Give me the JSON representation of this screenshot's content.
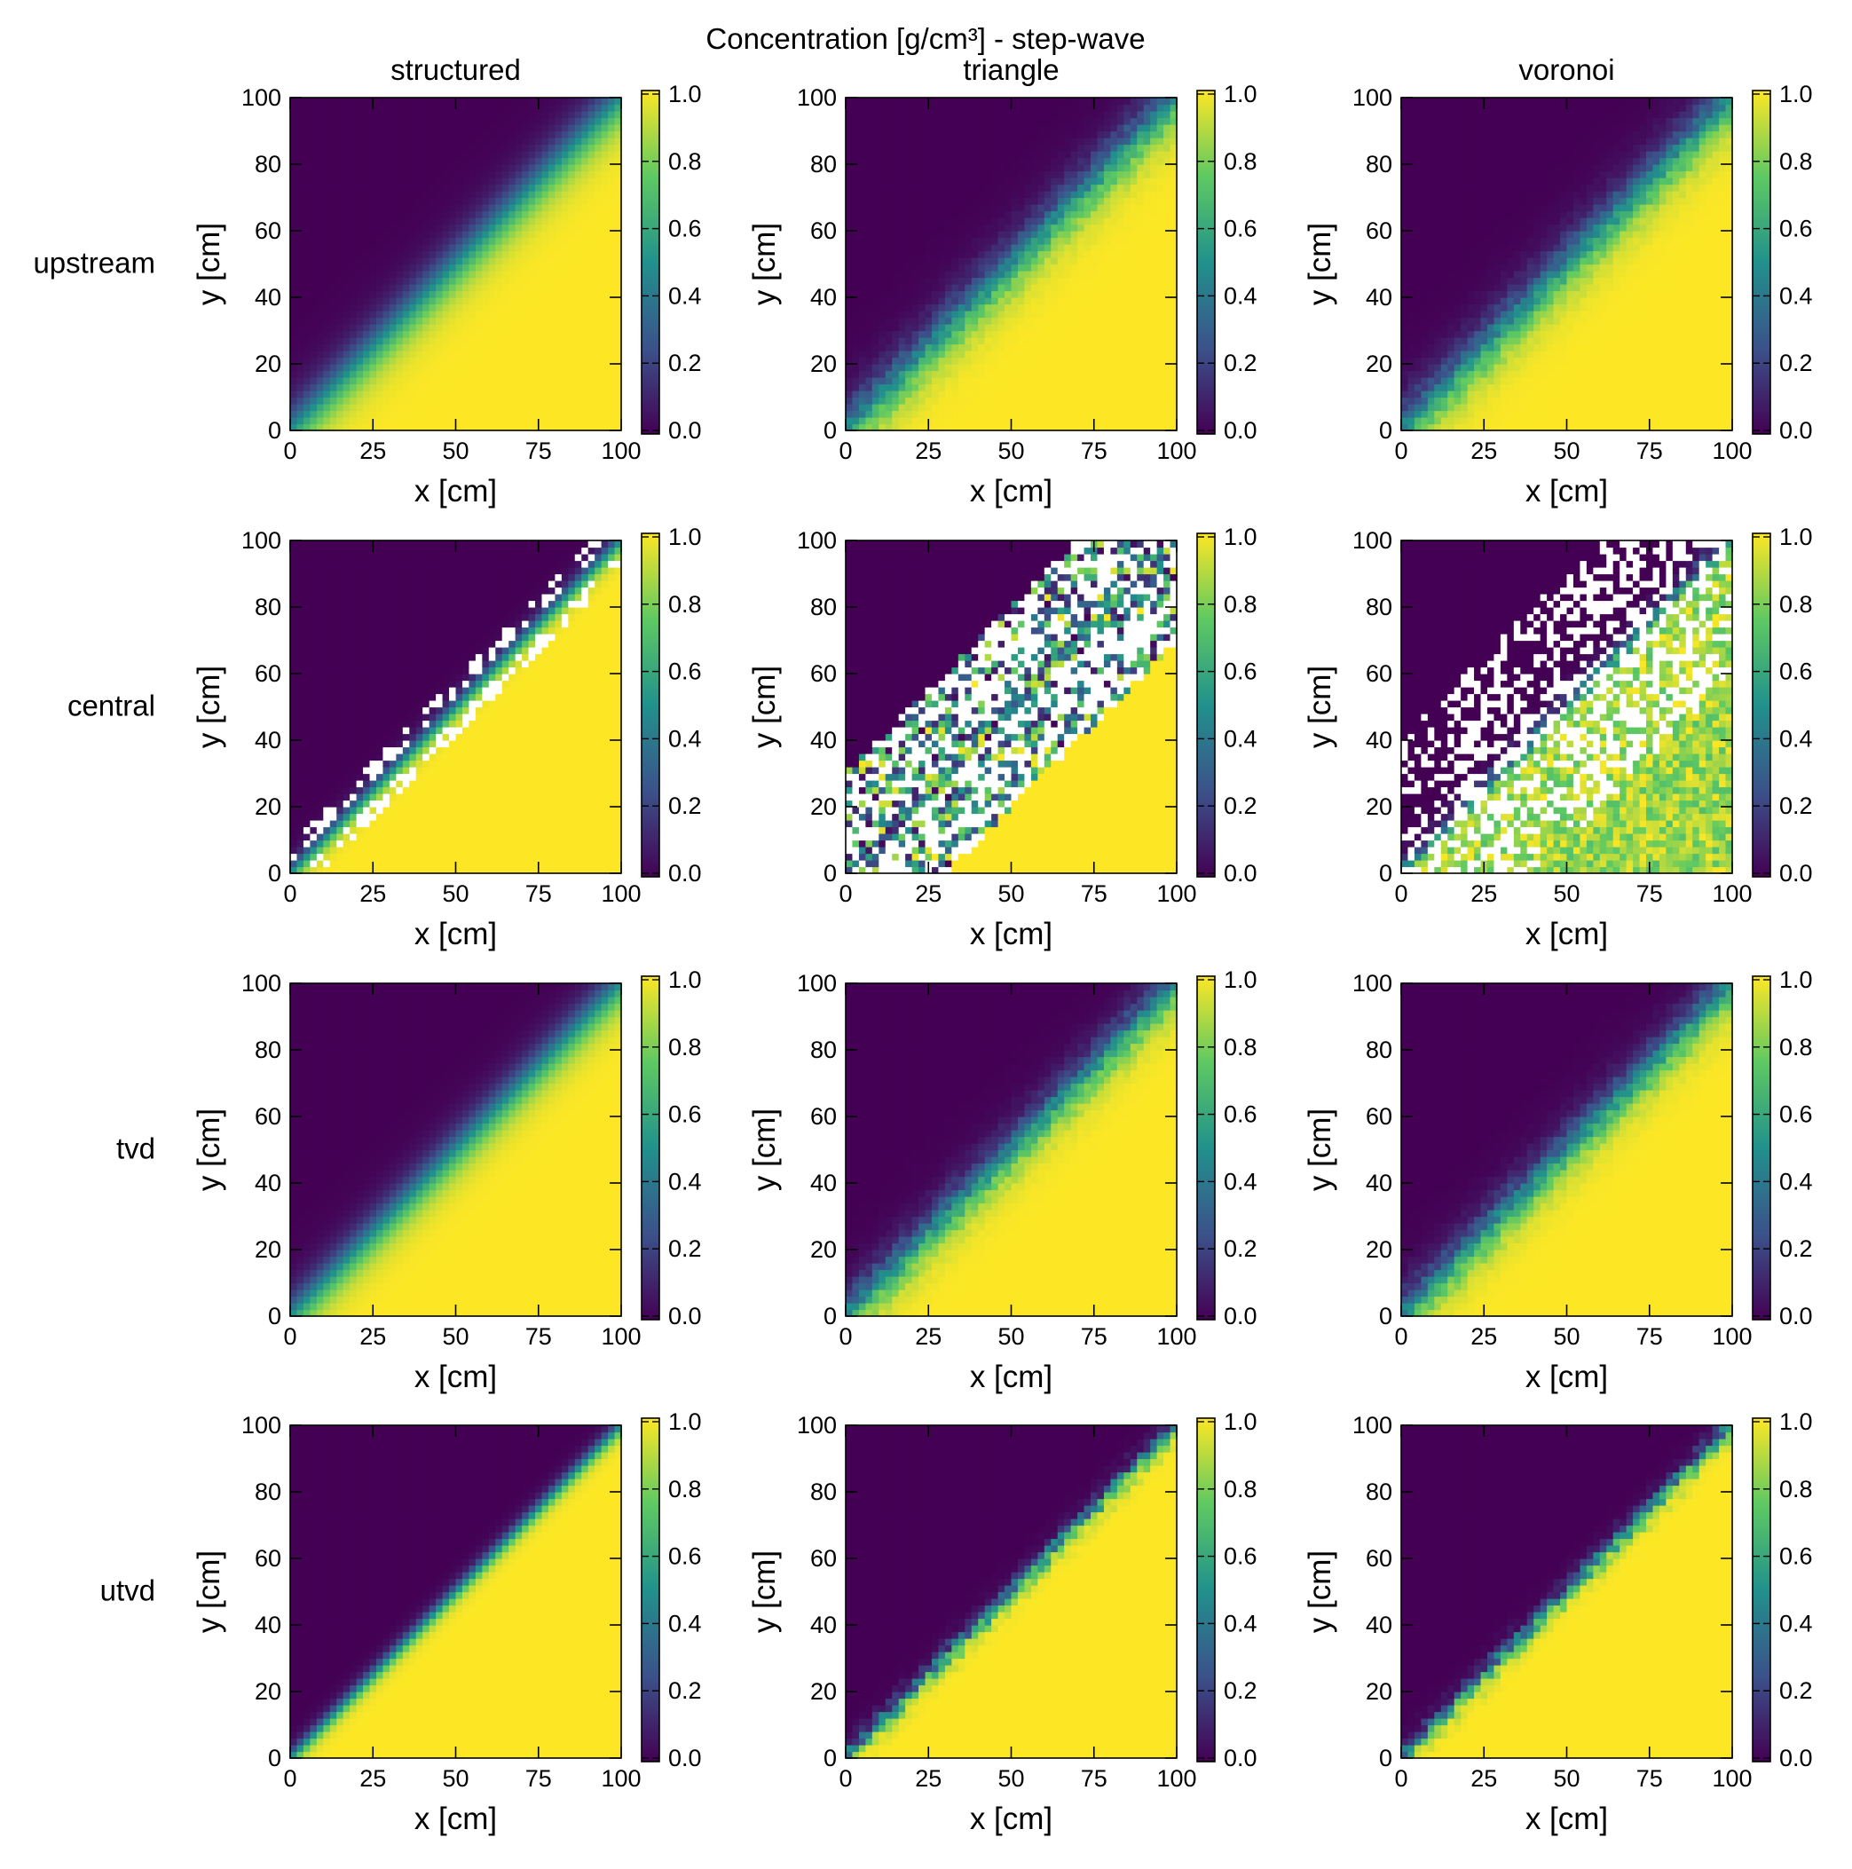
{
  "chart_data": {
    "type": "heatmap",
    "title": "Concentration [g/cm³] - step-wave",
    "columns": [
      "structured",
      "triangle",
      "voronoi"
    ],
    "rows": [
      "upstream",
      "central",
      "tvd",
      "utvd"
    ],
    "xlabel": "x [cm]",
    "ylabel": "y [cm]",
    "xlim": [
      0,
      100
    ],
    "ylim": [
      0,
      100
    ],
    "x_ticks": [
      "0",
      "25",
      "50",
      "75",
      "100"
    ],
    "y_ticks": [
      "0",
      "20",
      "40",
      "60",
      "80",
      "100"
    ],
    "colorbar": {
      "colormap": "viridis",
      "range": [
        0.0,
        1.0
      ],
      "ticks": [
        "0.0",
        "0.2",
        "0.4",
        "0.6",
        "0.8",
        "1.0"
      ],
      "colors": [
        "#440154",
        "#3b528b",
        "#21918c",
        "#5ec962",
        "#fde725"
      ]
    },
    "field": {
      "description_values": "concentration rises from 0.0 above the front to 1.0 below it",
      "front_line": {
        "x": [
          0,
          100
        ],
        "y": [
          0,
          100
        ]
      },
      "transition_halfwidth_by_scheme": {
        "upstream": 14,
        "central": 6,
        "tvd": 12,
        "utvd": 5
      },
      "central_scheme_has_undefined_cells": true
    }
  }
}
